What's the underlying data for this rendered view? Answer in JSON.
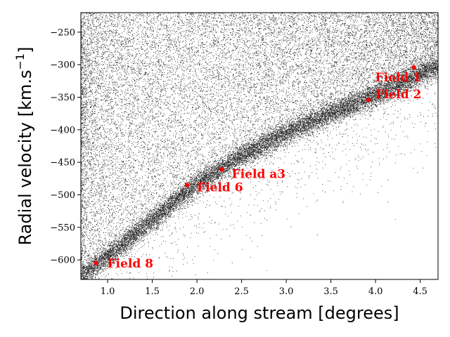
{
  "chart_data": {
    "type": "scatter",
    "title": "",
    "xlabel": "Direction along stream [degrees]",
    "ylabel": "Radial velocity [km.s",
    "ylabel_unit_sup": "−1",
    "ylabel_close": "]",
    "xlim": [
      0.7,
      4.7
    ],
    "ylim": [
      -630,
      -220
    ],
    "x_ticks": [
      {
        "value": 1.0,
        "label": "1.0"
      },
      {
        "value": 1.5,
        "label": "1.5"
      },
      {
        "value": 2.0,
        "label": "2.0"
      },
      {
        "value": 2.5,
        "label": "2.5"
      },
      {
        "value": 3.0,
        "label": "3.0"
      },
      {
        "value": 3.5,
        "label": "3.5"
      },
      {
        "value": 4.0,
        "label": "4.0"
      },
      {
        "value": 4.5,
        "label": "4.5"
      }
    ],
    "y_ticks": [
      {
        "value": -250,
        "label": "−250"
      },
      {
        "value": -300,
        "label": "−300"
      },
      {
        "value": -350,
        "label": "−350"
      },
      {
        "value": -400,
        "label": "−400"
      },
      {
        "value": -450,
        "label": "−450"
      },
      {
        "value": -500,
        "label": "−500"
      },
      {
        "value": -550,
        "label": "−550"
      },
      {
        "value": -600,
        "label": "−600"
      }
    ],
    "grid": false,
    "legend": "none",
    "stream_track": {
      "x": [
        0.7,
        1.0,
        1.5,
        2.0,
        2.5,
        3.0,
        3.5,
        4.0,
        4.5,
        4.7
      ],
      "y": [
        -625,
        -595,
        -538,
        -483,
        -440,
        -405,
        -375,
        -348,
        -315,
        -303
      ]
    },
    "fields": [
      {
        "name": "Field 1",
        "x": 4.43,
        "y": -304
      },
      {
        "name": "Field 2",
        "x": 3.92,
        "y": -354
      },
      {
        "name": "Field a3",
        "x": 2.28,
        "y": -461
      },
      {
        "name": "Field 6",
        "x": 1.89,
        "y": -485
      },
      {
        "name": "Field 8",
        "x": 0.87,
        "y": -605
      }
    ],
    "colors": {
      "points": "#000000",
      "fields": "#ff0000"
    }
  }
}
